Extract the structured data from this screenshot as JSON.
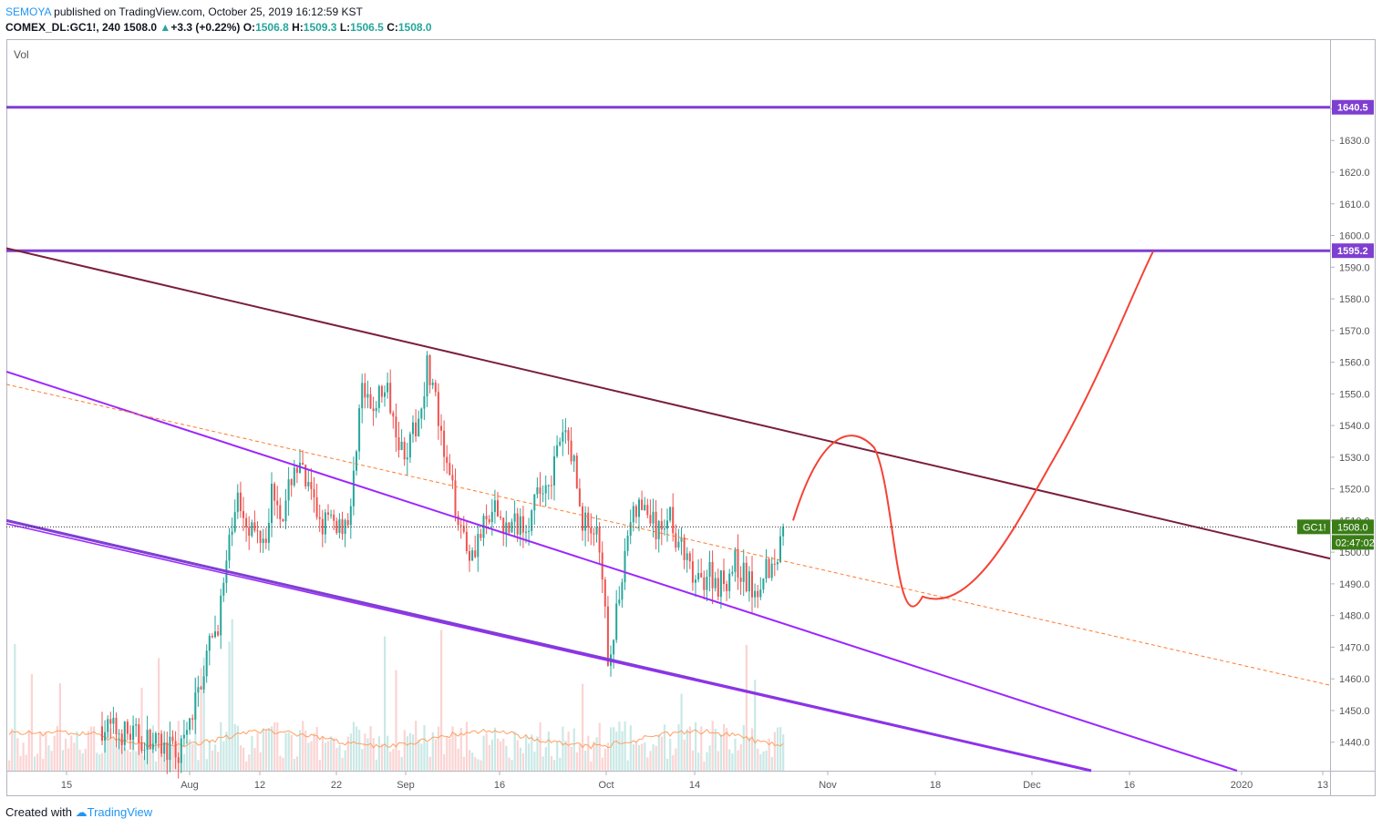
{
  "header": {
    "author": "SEMOYA",
    "published_text": "published on TradingView.com, October 25, 2019 16:12:59 KST",
    "symbol": "COMEX_DL:GC1!, 240",
    "last": "1508.0",
    "change": "+3.3 (+0.22%)",
    "o_label": "O:",
    "o_value": "1506.8",
    "h_label": "H:",
    "h_value": "1509.3",
    "l_label": "L:",
    "l_value": "1506.5",
    "c_label": "C:",
    "c_value": "1508.0"
  },
  "footer": {
    "created_with": "Created with",
    "brand": "TradingView"
  },
  "colors": {
    "up": "#26a69a",
    "down": "#ef5350",
    "purple": "#7e3fd1",
    "violet": "#9c27ff",
    "maroon": "#7b1f3a",
    "forecast": "#f44336",
    "mid": "#ff7a2e",
    "price_tag": "#3a7d17"
  },
  "chart_data": {
    "type": "candlestick",
    "indicator_label": "Vol",
    "symbol_tag": "GC1!",
    "last_price_label": "1508.0",
    "countdown_label": "02:47:02",
    "y_ticks": [
      "1640.0",
      "1630.0",
      "1620.0",
      "1610.0",
      "1600.0",
      "1590.0",
      "1580.0",
      "1570.0",
      "1560.0",
      "1550.0",
      "1540.0",
      "1530.0",
      "1520.0",
      "1510.0",
      "1500.0",
      "1490.0",
      "1480.0",
      "1470.0",
      "1460.0",
      "1450.0",
      "1440.0"
    ],
    "y_tick_values": [
      1640,
      1630,
      1620,
      1610,
      1600,
      1590,
      1580,
      1570,
      1560,
      1550,
      1540,
      1530,
      1520,
      1510,
      1500,
      1490,
      1480,
      1470,
      1460,
      1450,
      1440
    ],
    "x_ticks": [
      "15",
      "Aug",
      "12",
      "22",
      "Sep",
      "16",
      "Oct",
      "14",
      "Nov",
      "18",
      "Dec",
      "16",
      "2020",
      "13"
    ],
    "ylim": [
      1431,
      1662
    ],
    "levels": [
      {
        "label": "1640.5",
        "price": 1640.5
      },
      {
        "label": "1595.2",
        "price": 1595.2
      }
    ],
    "last_price": 1508.0,
    "candles_summary": {
      "period": "Jul 2019 - Oct 25 2019, 4h",
      "low": 1465.0,
      "high": 1566.0,
      "close": 1508.0
    }
  }
}
